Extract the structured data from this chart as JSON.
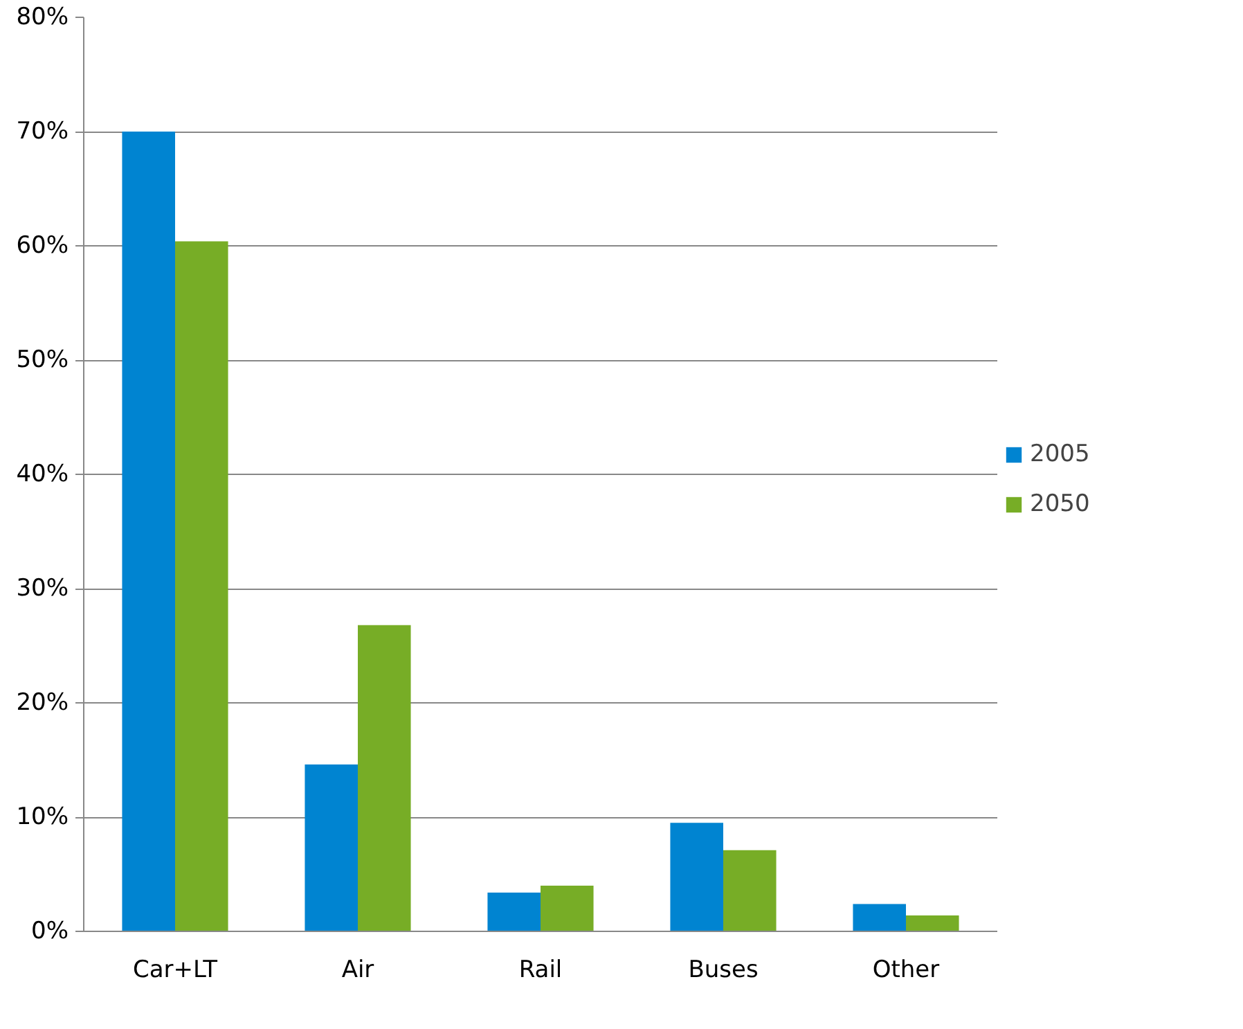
{
  "chart_data": {
    "type": "bar",
    "categories": [
      "Car+LT",
      "Air",
      "Rail",
      "Buses",
      "Other"
    ],
    "series": [
      {
        "name": "2005",
        "color": "#0084d1",
        "values": [
          70,
          14.6,
          3.4,
          9.5,
          2.4
        ]
      },
      {
        "name": "2050",
        "color": "#77ad26",
        "values": [
          60.4,
          26.8,
          4.0,
          7.1,
          1.4
        ]
      }
    ],
    "ylim": [
      0,
      80
    ],
    "yticks": [
      {
        "value": 0,
        "label": "0%"
      },
      {
        "value": 10,
        "label": "10%"
      },
      {
        "value": 20,
        "label": "20%"
      },
      {
        "value": 30,
        "label": "30%"
      },
      {
        "value": 40,
        "label": "40%"
      },
      {
        "value": 50,
        "label": "50%"
      },
      {
        "value": 60,
        "label": "60%"
      },
      {
        "value": 70,
        "label": "70%"
      },
      {
        "value": 80,
        "label": "80%"
      }
    ],
    "grid": "y",
    "legend": "right"
  }
}
